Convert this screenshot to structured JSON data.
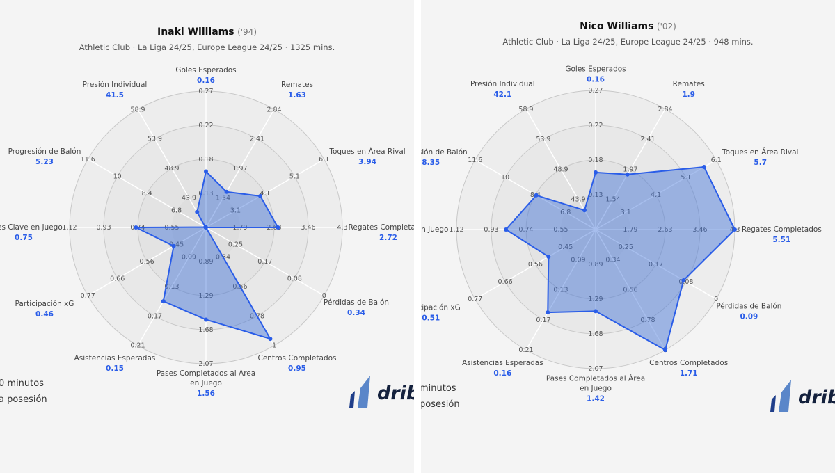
{
  "colors": {
    "accent": "#2a5de8",
    "fill": "#4a78d4",
    "panel_bg": "#f4f4f4"
  },
  "legend_left": [
    "0 minutos",
    "a posesión"
  ],
  "legend_right": [
    "minutos",
    "posesión"
  ],
  "logo": {
    "text": "drib"
  },
  "chart_data": [
    {
      "type": "radar",
      "title_name": "Inaki Williams",
      "title_year": "('94)",
      "subtitle": "Athletic Club · La Liga 24/25, Europe League 24/25 · 1325 mins.",
      "axes": [
        {
          "label": [
            "Goles Esperados"
          ],
          "value_label": "0.16",
          "value": 0.16,
          "ticks": [
            "0.13",
            "0.18",
            "0.22",
            "0.27"
          ]
        },
        {
          "label": [
            "Remates"
          ],
          "value_label": "1.63",
          "value": 1.63,
          "ticks": [
            "1.54",
            "1.97",
            "2.41",
            "2.84"
          ]
        },
        {
          "label": [
            "Toques en Área Rival"
          ],
          "value_label": "3.94",
          "value": 3.94,
          "ticks": [
            "3.1",
            "4.1",
            "5.1",
            "6.1"
          ]
        },
        {
          "label": [
            "Regates Completados"
          ],
          "value_label": "2.72",
          "value": 2.72,
          "ticks": [
            "1.79",
            "2.63",
            "3.46",
            "4.3"
          ]
        },
        {
          "label": [
            "Pérdidas de Balón"
          ],
          "value_label": "0.34",
          "value": 0.34,
          "ticks": [
            "0.25",
            "0.17",
            "0.08",
            "0"
          ]
        },
        {
          "label": [
            "Centros Completados"
          ],
          "value_label": "0.95",
          "value": 0.95,
          "ticks": [
            "0.34",
            "0.56",
            "0.78",
            "1"
          ]
        },
        {
          "label": [
            "Pases Completados al Área",
            "en Juego"
          ],
          "value_label": "1.56",
          "value": 1.56,
          "ticks": [
            "0.89",
            "1.29",
            "1.68",
            "2.07"
          ]
        },
        {
          "label": [
            "Asistencias Esperadas"
          ],
          "value_label": "0.15",
          "value": 0.15,
          "ticks": [
            "0.09",
            "0.13",
            "0.17",
            "0.21"
          ]
        },
        {
          "label": [
            "Participación xG"
          ],
          "value_label": "0.46",
          "value": 0.46,
          "ticks": [
            "0.45",
            "0.56",
            "0.66",
            "0.77"
          ]
        },
        {
          "label": [
            "Pases Clave en Juego"
          ],
          "value_label": "0.75",
          "value": 0.75,
          "ticks": [
            "0.55",
            "0.74",
            "0.93",
            "1.12"
          ]
        },
        {
          "label": [
            "Progresión de Balón"
          ],
          "value_label": "5.23",
          "value": 5.23,
          "ticks": [
            "6.8",
            "8.4",
            "10",
            "11.6"
          ]
        },
        {
          "label": [
            "Presión Individual"
          ],
          "value_label": "41.5",
          "value": 41.5,
          "ticks": [
            "43.9",
            "48.9",
            "53.9",
            "58.9"
          ]
        }
      ]
    },
    {
      "type": "radar",
      "title_name": "Nico Williams",
      "title_year": "('02)",
      "subtitle": "Athletic Club · La Liga 24/25, Europe League 24/25 · 948 mins.",
      "axes": [
        {
          "label": [
            "Goles Esperados"
          ],
          "value_label": "0.16",
          "value": 0.16,
          "ticks": [
            "0.13",
            "0.18",
            "0.22",
            "0.27"
          ]
        },
        {
          "label": [
            "Remates"
          ],
          "value_label": "1.9",
          "value": 1.9,
          "ticks": [
            "1.54",
            "1.97",
            "2.41",
            "2.84"
          ]
        },
        {
          "label": [
            "Toques en Área Rival"
          ],
          "value_label": "5.7",
          "value": 5.7,
          "ticks": [
            "3.1",
            "4.1",
            "5.1",
            "6.1"
          ]
        },
        {
          "label": [
            "Regates Completados"
          ],
          "value_label": "5.51",
          "value": 5.51,
          "ticks": [
            "1.79",
            "2.63",
            "3.46",
            "4.3"
          ]
        },
        {
          "label": [
            "Pérdidas de Balón"
          ],
          "value_label": "0.09",
          "value": 0.09,
          "ticks": [
            "0.25",
            "0.17",
            "0.08",
            "0"
          ]
        },
        {
          "label": [
            "Centros Completados"
          ],
          "value_label": "1.71",
          "value": 1.71,
          "ticks": [
            "0.34",
            "0.56",
            "0.78",
            "1"
          ]
        },
        {
          "label": [
            "Pases Completados al Área",
            "en Juego"
          ],
          "value_label": "1.42",
          "value": 1.42,
          "ticks": [
            "0.89",
            "1.29",
            "1.68",
            "2.07"
          ]
        },
        {
          "label": [
            "Asistencias Esperadas"
          ],
          "value_label": "0.16",
          "value": 0.16,
          "ticks": [
            "0.09",
            "0.13",
            "0.17",
            "0.21"
          ]
        },
        {
          "label": [
            "Participación xG"
          ],
          "value_label": "0.51",
          "value": 0.51,
          "ticks": [
            "0.45",
            "0.56",
            "0.66",
            "0.77"
          ]
        },
        {
          "label": [
            "Pases Clave en Juego"
          ],
          "value_label": "0.85",
          "value": 0.85,
          "ticks": [
            "0.55",
            "0.74",
            "0.93",
            "1.12"
          ]
        },
        {
          "label": [
            "Progresión de Balón"
          ],
          "value_label": "8.35",
          "value": 8.35,
          "ticks": [
            "6.8",
            "8.4",
            "10",
            "11.6"
          ]
        },
        {
          "label": [
            "Presión Individual"
          ],
          "value_label": "42.1",
          "value": 42.1,
          "ticks": [
            "43.9",
            "48.9",
            "53.9",
            "58.9"
          ]
        }
      ]
    }
  ]
}
